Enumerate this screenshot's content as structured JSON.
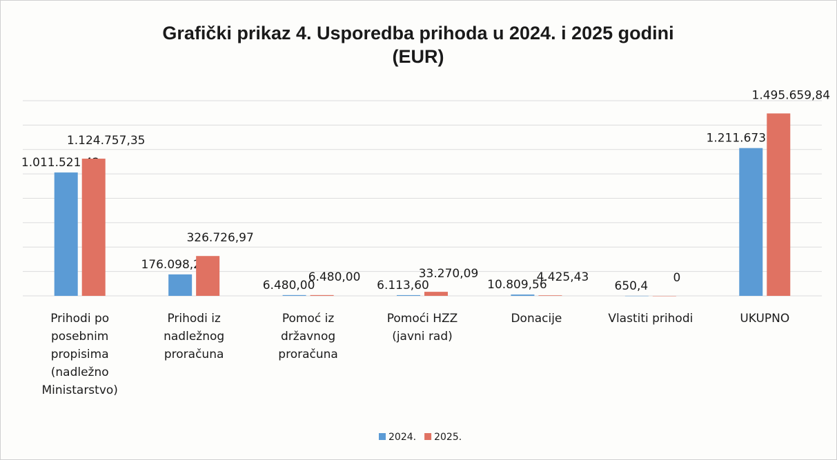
{
  "chart_data": {
    "type": "bar",
    "title": "Grafički prikaz 4. Usporedba prihoda u 2024. i 2025 godini (EUR)",
    "categories": [
      "Prihodi po posebnim propisima (nadležno Ministarstvo)",
      "Prihodi iz nadležnog proračuna",
      "Pomoć iz državnog proračuna",
      "Pomoći HZZ (javni rad)",
      "Donacije",
      "Vlastiti prihodi",
      "UKUPNO"
    ],
    "series": [
      {
        "name": "2024.",
        "color": "#5b9bd5",
        "values": [
          1011521.42,
          176098.26,
          6480.0,
          6113.6,
          10809.56,
          650.4,
          1211673.24
        ],
        "value_labels": [
          "1.011.521,42",
          "176.098,26",
          "6.480,00",
          "6.113,60",
          "10.809,56",
          "650,4",
          "1.211.673,24"
        ]
      },
      {
        "name": "2025.",
        "color": "#e07262",
        "values": [
          1124757.35,
          326726.97,
          6480.0,
          33270.09,
          4425.43,
          0,
          1495659.84
        ],
        "value_labels": [
          "1.124.757,35",
          "326.726,97",
          "6.480,00",
          "33.270,09",
          "4.425,43",
          "0",
          "1.495.659,84"
        ]
      }
    ],
    "ylim": [
      0,
      1600000
    ],
    "yticks": [
      0,
      200000,
      400000,
      600000,
      800000,
      1000000,
      1200000,
      1400000,
      1600000
    ],
    "grid": true,
    "legend": "bottom"
  }
}
